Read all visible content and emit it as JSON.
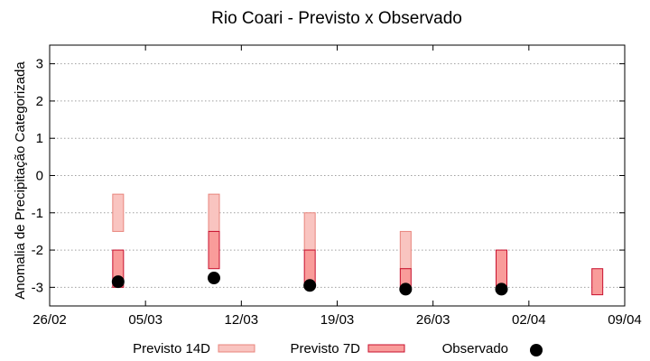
{
  "chart_data": {
    "type": "bar",
    "title": "Rio Coari - Previsto x Observado",
    "ylabel": "Anomalia de Precipitação Categorizada",
    "xlabel": "",
    "ylim": [
      -3.5,
      3.5
    ],
    "yticks": [
      3,
      2,
      1,
      0,
      -1,
      -2,
      -3
    ],
    "xlim": [
      "2019-02-26",
      "2019-04-09"
    ],
    "xticks": [
      {
        "date": "2019-02-26",
        "label": "26/02"
      },
      {
        "date": "2019-03-05",
        "label": "05/03"
      },
      {
        "date": "2019-03-12",
        "label": "12/03"
      },
      {
        "date": "2019-03-19",
        "label": "19/03"
      },
      {
        "date": "2019-03-26",
        "label": "26/03"
      },
      {
        "date": "2019-04-02",
        "label": "02/04"
      },
      {
        "date": "2019-04-09",
        "label": "09/04"
      }
    ],
    "grid": true,
    "legend_position": "bottom",
    "series": [
      {
        "name": "Previsto 14D",
        "kind": "range",
        "fill": "#f9c4c0",
        "stroke": "#e8857d",
        "points": [
          {
            "date": "2019-03-03",
            "low": -1.5,
            "high": -0.5
          },
          {
            "date": "2019-03-10",
            "low": -1.5,
            "high": -0.5
          },
          {
            "date": "2019-03-17",
            "low": -2.0,
            "high": -1.0
          },
          {
            "date": "2019-03-24",
            "low": -2.5,
            "high": -1.5
          }
        ]
      },
      {
        "name": "Previsto 7D",
        "kind": "range",
        "fill": "#f99c9a",
        "stroke": "#c8102e",
        "points": [
          {
            "date": "2019-03-03",
            "low": -3.0,
            "high": -2.0
          },
          {
            "date": "2019-03-10",
            "low": -2.5,
            "high": -1.5
          },
          {
            "date": "2019-03-17",
            "low": -3.0,
            "high": -2.0
          },
          {
            "date": "2019-03-24",
            "low": -3.0,
            "high": -2.5
          },
          {
            "date": "2019-03-31",
            "low": -3.0,
            "high": -2.0
          },
          {
            "date": "2019-04-07",
            "low": -3.2,
            "high": -2.5
          }
        ]
      },
      {
        "name": "Observado",
        "kind": "point",
        "color": "#000000",
        "points": [
          {
            "date": "2019-03-03",
            "value": -2.85
          },
          {
            "date": "2019-03-10",
            "value": -2.75
          },
          {
            "date": "2019-03-17",
            "value": -2.95
          },
          {
            "date": "2019-03-24",
            "value": -3.05
          },
          {
            "date": "2019-03-31",
            "value": -3.05
          }
        ]
      }
    ]
  }
}
